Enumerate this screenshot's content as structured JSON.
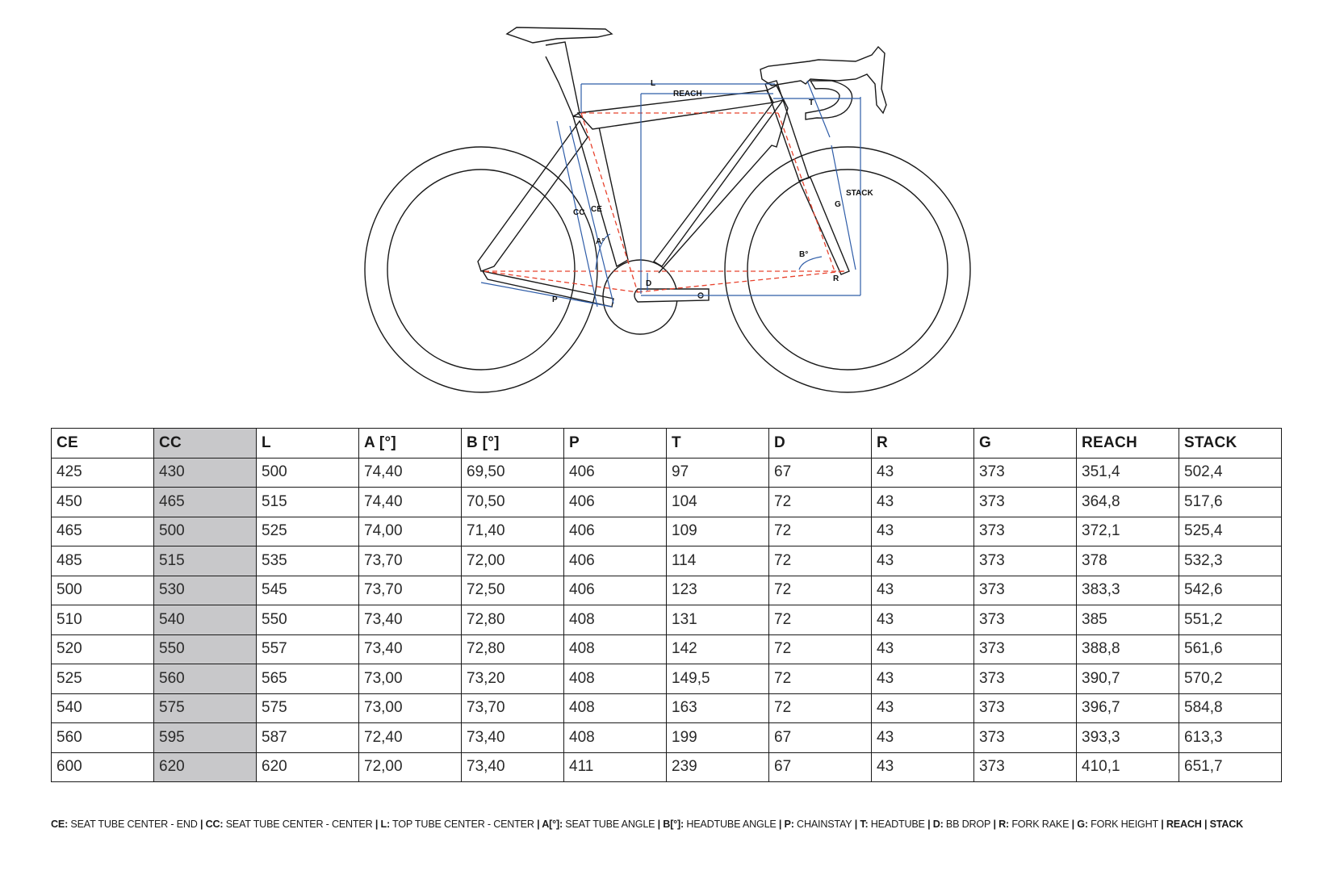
{
  "diagram": {
    "labels": {
      "L": "L",
      "REACH": "REACH",
      "T": "T",
      "STACK": "STACK",
      "G": "G",
      "CC": "CC",
      "CE": "CE",
      "A": "A°",
      "B": "B°",
      "D": "D",
      "R": "R",
      "P": "P"
    },
    "colors": {
      "frame": "#1a1a1a",
      "dimension": "#2f5da8",
      "centerline": "#e8432e"
    }
  },
  "table": {
    "columns": [
      "CE",
      "CC",
      "L",
      "A [°]",
      "B [°]",
      "P",
      "T",
      "D",
      "R",
      "G",
      "REACH",
      "STACK"
    ],
    "highlight_column": "CC",
    "highlight_color": "#c8c8ca",
    "rows": [
      [
        "425",
        "430",
        "500",
        "74,40",
        "69,50",
        "406",
        "97",
        "67",
        "43",
        "373",
        "351,4",
        "502,4"
      ],
      [
        "450",
        "465",
        "515",
        "74,40",
        "70,50",
        "406",
        "104",
        "72",
        "43",
        "373",
        "364,8",
        "517,6"
      ],
      [
        "465",
        "500",
        "525",
        "74,00",
        "71,40",
        "406",
        "109",
        "72",
        "43",
        "373",
        "372,1",
        "525,4"
      ],
      [
        "485",
        "515",
        "535",
        "73,70",
        "72,00",
        "406",
        "114",
        "72",
        "43",
        "373",
        "378",
        "532,3"
      ],
      [
        "500",
        "530",
        "545",
        "73,70",
        "72,50",
        "406",
        "123",
        "72",
        "43",
        "373",
        "383,3",
        "542,6"
      ],
      [
        "510",
        "540",
        "550",
        "73,40",
        "72,80",
        "408",
        "131",
        "72",
        "43",
        "373",
        "385",
        "551,2"
      ],
      [
        "520",
        "550",
        "557",
        "73,40",
        "72,80",
        "408",
        "142",
        "72",
        "43",
        "373",
        "388,8",
        "561,6"
      ],
      [
        "525",
        "560",
        "565",
        "73,00",
        "73,20",
        "408",
        "149,5",
        "72",
        "43",
        "373",
        "390,7",
        "570,2"
      ],
      [
        "540",
        "575",
        "575",
        "73,00",
        "73,70",
        "408",
        "163",
        "72",
        "43",
        "373",
        "396,7",
        "584,8"
      ],
      [
        "560",
        "595",
        "587",
        "72,40",
        "73,40",
        "408",
        "199",
        "67",
        "43",
        "373",
        "393,3",
        "613,3"
      ],
      [
        "600",
        "620",
        "620",
        "72,00",
        "73,40",
        "411",
        "239",
        "67",
        "43",
        "373",
        "410,1",
        "651,7"
      ]
    ]
  },
  "legend": {
    "items": [
      {
        "key": "CE:",
        "desc": "SEAT TUBE CENTER - END"
      },
      {
        "key": "CC:",
        "desc": "SEAT TUBE CENTER - CENTER"
      },
      {
        "key": "L:",
        "desc": "TOP TUBE CENTER - CENTER"
      },
      {
        "key": "A[°]:",
        "desc": "SEAT TUBE ANGLE"
      },
      {
        "key": "B[°]:",
        "desc": "HEADTUBE ANGLE"
      },
      {
        "key": "P:",
        "desc": "CHAINSTAY"
      },
      {
        "key": "T:",
        "desc": "HEADTUBE"
      },
      {
        "key": "D:",
        "desc": "BB DROP"
      },
      {
        "key": "R:",
        "desc": "FORK RAKE"
      },
      {
        "key": "G:",
        "desc": "FORK HEIGHT"
      },
      {
        "key": "REACH",
        "desc": ""
      },
      {
        "key": "STACK",
        "desc": ""
      }
    ]
  }
}
